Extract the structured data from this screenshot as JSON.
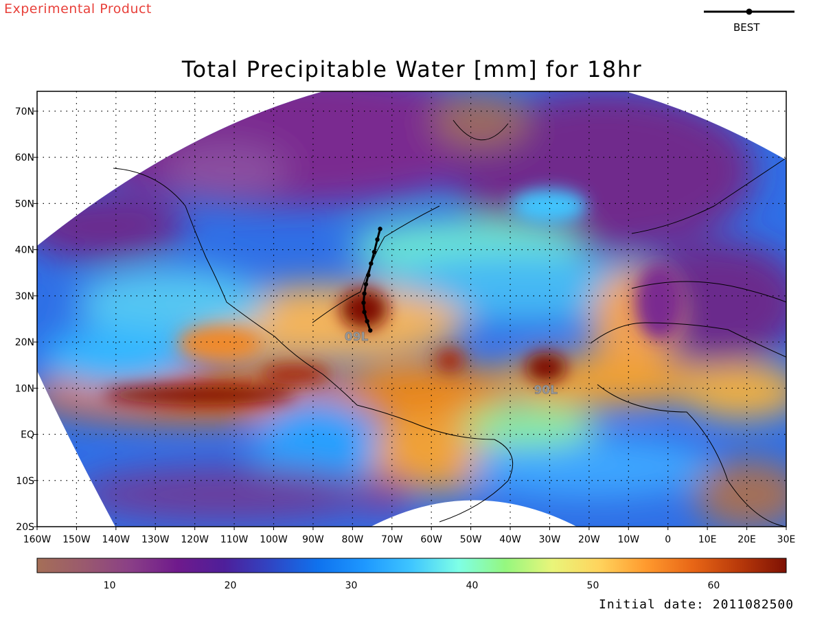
{
  "header": {
    "product_label": "Experimental Product",
    "track_legend_label": "BEST",
    "title": "Total Precipitable Water [mm] for 18hr"
  },
  "map": {
    "projection": "lat-lon, sector plot",
    "lon_ticks": [
      "160W",
      "150W",
      "140W",
      "130W",
      "120W",
      "110W",
      "100W",
      "90W",
      "80W",
      "70W",
      "60W",
      "50W",
      "40W",
      "30W",
      "20W",
      "10W",
      "0",
      "10E",
      "20E",
      "30E"
    ],
    "lat_ticks": [
      "70N",
      "60N",
      "50N",
      "40N",
      "30N",
      "20N",
      "10N",
      "EQ",
      "10S",
      "20S"
    ],
    "storm_labels": [
      {
        "text": "09L",
        "lon": -79,
        "lat": 20.3
      },
      {
        "text": "90L",
        "lon": -31,
        "lat": 8.8
      }
    ],
    "best_track": [
      [
        -75.5,
        22.5
      ],
      [
        -76.3,
        24.5
      ],
      [
        -77,
        26.5
      ],
      [
        -77.2,
        28.5
      ],
      [
        -77,
        30.5
      ],
      [
        -76.6,
        32.5
      ],
      [
        -76,
        34.5
      ],
      [
        -75.3,
        37
      ],
      [
        -74.5,
        39.5
      ],
      [
        -73.7,
        42.2
      ],
      [
        -73,
        44.5
      ]
    ]
  },
  "colorbar": {
    "tick_labels": [
      "10",
      "20",
      "30",
      "40",
      "50",
      "60"
    ],
    "tick_values": [
      10,
      20,
      30,
      40,
      50,
      60
    ],
    "range": [
      4,
      66
    ],
    "colors": [
      "#a56f57",
      "#9a5a6e",
      "#8a3f87",
      "#6f1a8c",
      "#4e1f9a",
      "#2f46c4",
      "#0f72ee",
      "#1e98ff",
      "#3fc6ff",
      "#7effe6",
      "#95f77f",
      "#e9f57a",
      "#ffd45d",
      "#ff9a2e",
      "#e86616",
      "#b8390a",
      "#7e1104"
    ]
  },
  "footer": {
    "initial_date_label": "Initial date:",
    "initial_date_value": "2011082500"
  }
}
